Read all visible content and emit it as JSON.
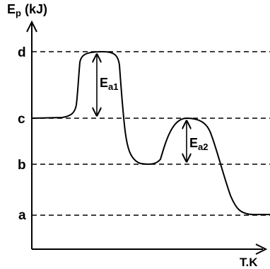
{
  "diagram": {
    "y_axis_label": {
      "main": "E",
      "sub": "p",
      "unit": " (kJ)"
    },
    "x_axis_label": "T.K",
    "levels": [
      {
        "id": "d",
        "label": "d"
      },
      {
        "id": "c",
        "label": "c"
      },
      {
        "id": "b",
        "label": "b"
      },
      {
        "id": "a",
        "label": "a"
      }
    ],
    "activation_energies": [
      {
        "id": "ea1",
        "main": "E",
        "sub": "a1",
        "from": "c",
        "to": "d"
      },
      {
        "id": "ea2",
        "main": "E",
        "sub": "a2",
        "from": "b",
        "to": "c"
      }
    ],
    "colors": {
      "line": "#000000",
      "background": "#ffffff"
    }
  }
}
